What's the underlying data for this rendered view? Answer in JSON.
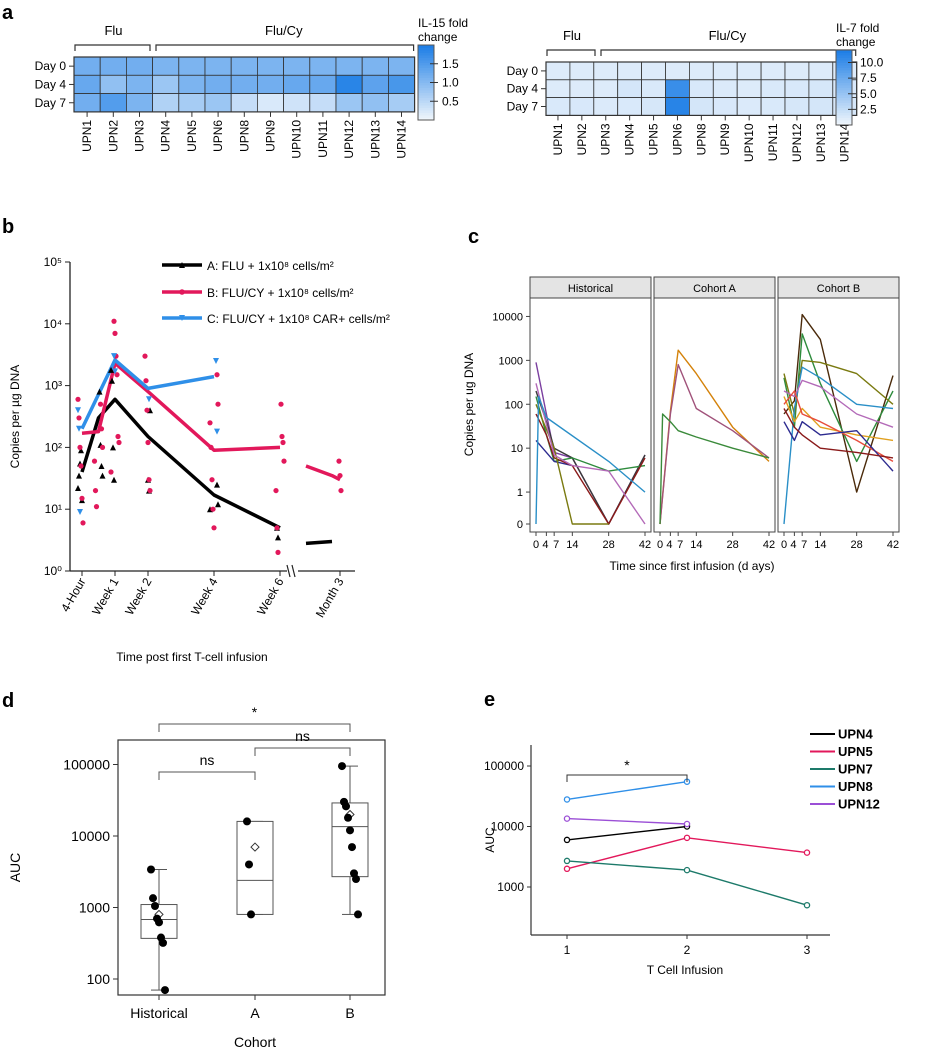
{
  "panel_labels": {
    "a": "a",
    "b": "b",
    "c": "c",
    "d": "d",
    "e": "e"
  },
  "colors": {
    "heat_low": "#eef5fc",
    "heat_high": "#1f7fe6",
    "cohort_a": "#000000",
    "cohort_b": "#e2185b",
    "cohort_c": "#2f8fe8",
    "strip_bg": "#e4e4e4"
  },
  "chart_data": [
    {
      "id": "a1",
      "type": "heatmap",
      "group_labels": [
        "Flu",
        "Flu/Cy"
      ],
      "rows": [
        "Day 0",
        "Day 4",
        "Day 7"
      ],
      "columns": [
        "UPN1",
        "UPN2",
        "UPN3",
        "UPN4",
        "UPN5",
        "UPN6",
        "UPN8",
        "UPN9",
        "UPN10",
        "UPN11",
        "UPN12",
        "UPN13",
        "UPN14"
      ],
      "values": [
        [
          1.2,
          1.2,
          1.2,
          1.1,
          1.1,
          1.1,
          1.1,
          1.1,
          1.1,
          1.1,
          1.1,
          1.1,
          1.1
        ],
        [
          1.3,
          0.9,
          1.1,
          0.8,
          1.1,
          1.2,
          1.2,
          1.2,
          1.3,
          1.3,
          1.9,
          1.4,
          1.6
        ],
        [
          1.2,
          1.5,
          1.1,
          0.6,
          0.7,
          0.8,
          0.4,
          0.2,
          0.3,
          0.4,
          0.8,
          0.9,
          0.7
        ]
      ],
      "colorbar_title": "IL-15 fold change",
      "colorbar_range": [
        0,
        2
      ],
      "colorbar_ticks": [
        0.5,
        1.0,
        1.5
      ],
      "colorbar_tick_labels": [
        "0.5",
        "1.0",
        "1.5"
      ]
    },
    {
      "id": "a2",
      "type": "heatmap",
      "group_labels": [
        "Flu",
        "Flu/Cy"
      ],
      "rows": [
        "Day 0",
        "Day 4",
        "Day 7"
      ],
      "columns": [
        "UPN1",
        "UPN2",
        "UPN3",
        "UPN4",
        "UPN5",
        "UPN6",
        "UPN8",
        "UPN9",
        "UPN10",
        "UPN11",
        "UPN12",
        "UPN13",
        "UPN14"
      ],
      "values": [
        [
          1.0,
          1.0,
          1.0,
          1.0,
          1.0,
          1.0,
          1.0,
          1.0,
          1.0,
          1.0,
          1.0,
          1.0,
          1.0
        ],
        [
          1.0,
          1.0,
          1.0,
          1.5,
          1.2,
          10.5,
          1.3,
          1.1,
          1.0,
          1.2,
          1.3,
          1.4,
          1.3
        ],
        [
          1.2,
          1.3,
          1.1,
          1.2,
          1.4,
          11.5,
          1.5,
          1.3,
          1.1,
          1.2,
          1.4,
          1.5,
          1.4
        ]
      ],
      "colorbar_title": "IL-7 fold change",
      "colorbar_range": [
        0,
        12
      ],
      "colorbar_ticks": [
        2.5,
        5.0,
        7.5,
        10.0
      ],
      "colorbar_tick_labels": [
        "2.5",
        "5.0",
        "7.5",
        "10.0"
      ]
    },
    {
      "id": "b",
      "type": "line",
      "xlabel": "Time post first T-cell infusion",
      "ylabel": "Copies per µg DNA",
      "yscale": "log",
      "ylim": [
        1,
        100000
      ],
      "y_ticks": [
        1,
        10,
        100,
        1000,
        10000,
        100000
      ],
      "y_tick_labels": [
        "10⁰",
        "10¹",
        "10²",
        "10³",
        "10⁴",
        "10⁵"
      ],
      "categories": [
        "4-Hour",
        "Week 1",
        "Week 2",
        "Week 4",
        "Week 6",
        "Month 3"
      ],
      "legend": [
        "A: FLU + 1x10⁸ cells/m²",
        "B: FLU/CY + 1x10⁸ cells/m²",
        "C: FLU/CY + 1x10⁸ CAR+ cells/m²"
      ],
      "series": [
        {
          "name": "A: FLU + 1x10⁸ cells/m²",
          "x": [
            0,
            0.5,
            1,
            2,
            4,
            6,
            6.4,
            6.8
          ],
          "y": [
            40,
            300,
            600,
            150,
            17,
            5,
            2.8,
            3
          ]
        },
        {
          "name": "B: FLU/CY + 1x10⁸ cells/m²",
          "x": [
            0,
            0.5,
            1,
            2,
            4,
            6,
            6.4,
            6.8,
            7.5
          ],
          "y": [
            170,
            180,
            2300,
            800,
            90,
            100,
            50,
            35,
            30
          ]
        },
        {
          "name": "C: FLU/CY + 1x10⁸ CAR+ cells/m²",
          "x": [
            0,
            1,
            2,
            4
          ],
          "y": [
            200,
            2600,
            900,
            1400
          ]
        }
      ],
      "points": [
        {
          "series": 0,
          "x": [
            0,
            0,
            0,
            0,
            0,
            0.5,
            0.5,
            0.5,
            0.5,
            1,
            1,
            1,
            1,
            2,
            2,
            2,
            4,
            4,
            4,
            6,
            6
          ],
          "y": [
            22,
            35,
            55,
            90,
            14,
            800,
            110,
            50,
            35,
            1800,
            1200,
            100,
            30,
            30,
            20,
            400,
            25,
            12,
            10,
            5,
            3.5
          ]
        },
        {
          "series": 1,
          "x": [
            0,
            0,
            0,
            0,
            0,
            0,
            0.5,
            0.5,
            0.5,
            0.5,
            0.5,
            0.5,
            1,
            1,
            1,
            1,
            1,
            1,
            1,
            2,
            2,
            2,
            2,
            2,
            2,
            4,
            4,
            4,
            4,
            4,
            4,
            4,
            6,
            6,
            6,
            6,
            6,
            6,
            6,
            7.5,
            7.5,
            7.5
          ],
          "y": [
            600,
            300,
            100,
            50,
            15,
            6,
            500,
            200,
            100,
            60,
            20,
            11,
            11000,
            7000,
            3000,
            1500,
            150,
            120,
            40,
            3000,
            1200,
            400,
            120,
            30,
            20,
            1500,
            500,
            250,
            100,
            30,
            10,
            5,
            500,
            150,
            120,
            60,
            20,
            5,
            2,
            60,
            35,
            20
          ]
        },
        {
          "series": 2,
          "x": [
            0,
            0,
            0,
            1,
            1,
            2,
            4,
            4
          ],
          "y": [
            400,
            200,
            9,
            3000,
            1700,
            600,
            2500,
            180
          ]
        }
      ]
    },
    {
      "id": "c",
      "type": "line",
      "xlabel": "Time since first infusion (d ays)",
      "ylabel": "Copies per ug DNA",
      "yscale": "pseudo-log",
      "facets": [
        "Historical",
        "Cohort A",
        "Cohort B"
      ],
      "x_ticks": [
        0,
        4,
        7,
        14,
        28,
        42
      ],
      "x_tick_labels": [
        "0",
        "4",
        "7",
        "14",
        "28",
        "42"
      ],
      "y_ticks": [
        0,
        1,
        10,
        100,
        1000,
        10000
      ],
      "y_tick_labels": [
        "0",
        "1",
        "10",
        "100",
        "1000",
        "10000"
      ],
      "series": [
        {
          "facet": 0,
          "color": "#7b3fa0",
          "x": [
            0,
            4,
            7,
            14,
            28,
            42
          ],
          "y": [
            900,
            60,
            8,
            6,
            0,
            7
          ]
        },
        {
          "facet": 0,
          "color": "#3a3a3a",
          "x": [
            0,
            4,
            7,
            14,
            28,
            42
          ],
          "y": [
            200,
            40,
            10,
            6,
            0,
            7
          ]
        },
        {
          "facet": 0,
          "color": "#2e8b3c",
          "x": [
            0,
            4,
            7,
            14,
            28,
            42
          ],
          "y": [
            150,
            20,
            5,
            6,
            3,
            4
          ]
        },
        {
          "facet": 0,
          "color": "#2d2b8f",
          "x": [
            0,
            4,
            7,
            14
          ],
          "y": [
            15,
            8,
            5,
            4
          ]
        },
        {
          "facet": 0,
          "color": "#8a1a1a",
          "x": [
            0,
            4,
            7,
            14,
            28,
            42
          ],
          "y": [
            60,
            20,
            6,
            4,
            0,
            6
          ]
        },
        {
          "facet": 0,
          "color": "#7a7a10",
          "x": [
            0,
            7,
            14,
            28
          ],
          "y": [
            100,
            10,
            0,
            0
          ]
        },
        {
          "facet": 0,
          "color": "#b36ab8",
          "x": [
            0,
            7,
            14,
            28,
            42
          ],
          "y": [
            300,
            7,
            4,
            3,
            0
          ]
        },
        {
          "facet": 0,
          "color": "#2a8fc7",
          "x": [
            0,
            1,
            4,
            28,
            42
          ],
          "y": [
            0,
            150,
            50,
            5,
            1
          ]
        },
        {
          "facet": 1,
          "color": "#d4820a",
          "x": [
            0,
            4,
            7,
            14,
            28,
            42
          ],
          "y": [
            0,
            70,
            1700,
            500,
            30,
            5
          ]
        },
        {
          "facet": 1,
          "color": "#a0527a",
          "x": [
            0,
            4,
            7,
            14,
            28,
            42
          ],
          "y": [
            0,
            60,
            800,
            80,
            25,
            6
          ]
        },
        {
          "facet": 1,
          "color": "#3a8a3a",
          "x": [
            0,
            1,
            4,
            7,
            14,
            28,
            42
          ],
          "y": [
            0,
            60,
            40,
            25,
            18,
            10,
            6
          ]
        },
        {
          "facet": 2,
          "color": "#4a2a0a",
          "x": [
            0,
            4,
            7,
            14,
            28,
            42
          ],
          "y": [
            60,
            120,
            11000,
            3000,
            1,
            450
          ]
        },
        {
          "facet": 2,
          "color": "#2e8b3c",
          "x": [
            0,
            4,
            7,
            14,
            28,
            42
          ],
          "y": [
            400,
            30,
            4000,
            300,
            5,
            200
          ]
        },
        {
          "facet": 2,
          "color": "#7a7a10",
          "x": [
            0,
            4,
            7,
            14,
            28,
            42
          ],
          "y": [
            500,
            60,
            1000,
            900,
            500,
            100
          ]
        },
        {
          "facet": 2,
          "color": "#2a8fc7",
          "x": [
            0,
            4,
            7,
            14,
            28,
            42
          ],
          "y": [
            0,
            80,
            700,
            400,
            100,
            80
          ]
        },
        {
          "facet": 2,
          "color": "#b36ab8",
          "x": [
            0,
            4,
            7,
            14,
            28,
            42
          ],
          "y": [
            200,
            150,
            350,
            250,
            60,
            30
          ]
        },
        {
          "facet": 2,
          "color": "#e0a020",
          "x": [
            0,
            4,
            7,
            14,
            28,
            42
          ],
          "y": [
            150,
            40,
            80,
            30,
            20,
            15
          ]
        },
        {
          "facet": 2,
          "color": "#e74c3c",
          "x": [
            0,
            4,
            7,
            14,
            28,
            42
          ],
          "y": [
            100,
            200,
            60,
            40,
            15,
            5
          ]
        },
        {
          "facet": 2,
          "color": "#2d2b8f",
          "x": [
            0,
            4,
            7,
            14,
            28,
            42
          ],
          "y": [
            40,
            15,
            40,
            20,
            25,
            3
          ]
        },
        {
          "facet": 2,
          "color": "#8a1a1a",
          "x": [
            0,
            4,
            7,
            14,
            28,
            42
          ],
          "y": [
            80,
            30,
            20,
            10,
            8,
            6
          ]
        }
      ]
    },
    {
      "id": "d",
      "type": "box",
      "xlabel": "Cohort",
      "ylabel": "AUC",
      "yscale": "log",
      "ylim": [
        55,
        160000
      ],
      "y_ticks": [
        100,
        1000,
        10000,
        100000
      ],
      "y_tick_labels": [
        "100",
        "1000",
        "10000",
        "100000"
      ],
      "categories": [
        "Historical",
        "A",
        "B"
      ],
      "boxes": [
        {
          "whisker_low": 70,
          "q1": 370,
          "median": 680,
          "q3": 1100,
          "whisker_high": 3400,
          "mean": 800
        },
        {
          "whisker_low": 800,
          "q1": 800,
          "median": 2400,
          "q3": 16000,
          "whisker_high": 16000,
          "mean": 7000
        },
        {
          "whisker_low": 800,
          "q1": 2700,
          "median": 13500,
          "q3": 29000,
          "whisker_high": 95000,
          "mean": 20000
        }
      ],
      "points": [
        {
          "group": 0,
          "values": [
            3400,
            1350,
            1050,
            700,
            620,
            380,
            320,
            70
          ]
        },
        {
          "group": 1,
          "values": [
            16000,
            4000,
            800
          ]
        },
        {
          "group": 2,
          "values": [
            95000,
            30000,
            26000,
            18000,
            12000,
            7000,
            3000,
            2500,
            800
          ]
        }
      ],
      "comparisons": [
        {
          "from": 0,
          "to": 1,
          "label": "ns"
        },
        {
          "from": 1,
          "to": 2,
          "label": "ns"
        },
        {
          "from": 0,
          "to": 2,
          "label": "*"
        }
      ]
    },
    {
      "id": "e",
      "type": "line",
      "xlabel": "T Cell Infusion",
      "ylabel": "AUC",
      "yscale": "log",
      "ylim": [
        400,
        100000
      ],
      "y_ticks": [
        1000,
        10000,
        100000
      ],
      "y_tick_labels": [
        "1000",
        "10000",
        "100000"
      ],
      "x_ticks": [
        1,
        2,
        3
      ],
      "x_tick_labels": [
        "1",
        "2",
        "3"
      ],
      "series": [
        {
          "name": "UPN4",
          "color": "#000000",
          "x": [
            1,
            2
          ],
          "y": [
            6000,
            10000
          ]
        },
        {
          "name": "UPN5",
          "color": "#e2185b",
          "x": [
            1,
            2,
            3
          ],
          "y": [
            2000,
            6500,
            3700
          ]
        },
        {
          "name": "UPN7",
          "color": "#1d7a6a",
          "x": [
            1,
            2,
            3
          ],
          "y": [
            2700,
            1900,
            500
          ]
        },
        {
          "name": "UPN8",
          "color": "#2f8fe8",
          "x": [
            1,
            2
          ],
          "y": [
            28000,
            55000
          ]
        },
        {
          "name": "UPN12",
          "color": "#9b4fd6",
          "x": [
            1,
            2
          ],
          "y": [
            13500,
            11000
          ]
        }
      ],
      "comparisons": [
        {
          "from": 1,
          "to": 2,
          "label": "*"
        }
      ]
    }
  ]
}
